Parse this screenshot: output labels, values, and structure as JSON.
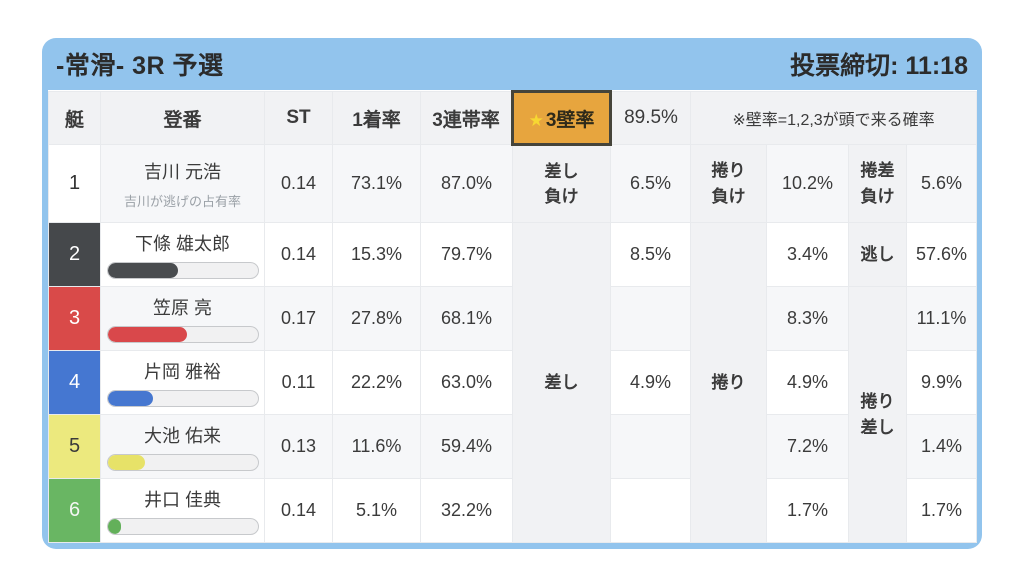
{
  "colors": {
    "accent_blue": "#92c4ed",
    "highlight_orange": "#e7a53e",
    "highlight_border": "#45443a",
    "star_yellow": "#f7d732",
    "header_gray": "#f1f2f4",
    "stripe_gray": "#f6f7f9",
    "boat1": "#ffffff",
    "boat2": "#45484b",
    "boat3": "#d94a49",
    "boat4": "#4577d1",
    "boat5": "#ece97e",
    "boat6": "#69b663"
  },
  "header": {
    "title": "-常滑- 3R 予選",
    "deadline": "投票締切: 11:18"
  },
  "table": {
    "col_boat": "艇",
    "col_racer": "登番",
    "col_st": "ST",
    "col_win1": "1着率",
    "col_top3": "3連帯率",
    "wall3": {
      "star": "★",
      "label": "3壁率",
      "value": "89.5%"
    },
    "note": "※壁率=1,2,3が頭で来る確率",
    "merged": {
      "sashi": "差し",
      "makuri": "捲り",
      "makuri_sashi": "捲り\n差し"
    },
    "rows": [
      {
        "boat": "1",
        "name": "吉川 元浩",
        "subtitle": "吉川が逃げの占有率",
        "st": "0.14",
        "win1": "73.1%",
        "top3": "87.0%",
        "label1": "差し\n負け",
        "val1": "6.5%",
        "label2": "捲り\n負け",
        "val2": "10.2%",
        "label3": "捲差\n負け",
        "val3": "5.6%"
      },
      {
        "boat": "2",
        "name": "下條 雄太郎",
        "bar_pct": 47,
        "st": "0.14",
        "win1": "15.3%",
        "top3": "79.7%",
        "val1": "8.5%",
        "val2": "3.4%",
        "label3": "逃し",
        "val3": "57.6%"
      },
      {
        "boat": "3",
        "name": "笠原 亮",
        "bar_pct": 53,
        "st": "0.17",
        "win1": "27.8%",
        "top3": "68.1%",
        "val1": "",
        "val2": "8.3%",
        "val3": "11.1%"
      },
      {
        "boat": "4",
        "name": "片岡 雅裕",
        "bar_pct": 30,
        "st": "0.11",
        "win1": "22.2%",
        "top3": "63.0%",
        "val1": "4.9%",
        "val2": "4.9%",
        "val3": "9.9%"
      },
      {
        "boat": "5",
        "name": "大池 佑来",
        "bar_pct": 25,
        "st": "0.13",
        "win1": "11.6%",
        "top3": "59.4%",
        "val1": "",
        "val2": "7.2%",
        "val3": "1.4%"
      },
      {
        "boat": "6",
        "name": "井口 佳典",
        "bar_pct": 9,
        "st": "0.14",
        "win1": "5.1%",
        "top3": "32.2%",
        "val1": "",
        "val2": "1.7%",
        "val3": "1.7%"
      }
    ]
  }
}
